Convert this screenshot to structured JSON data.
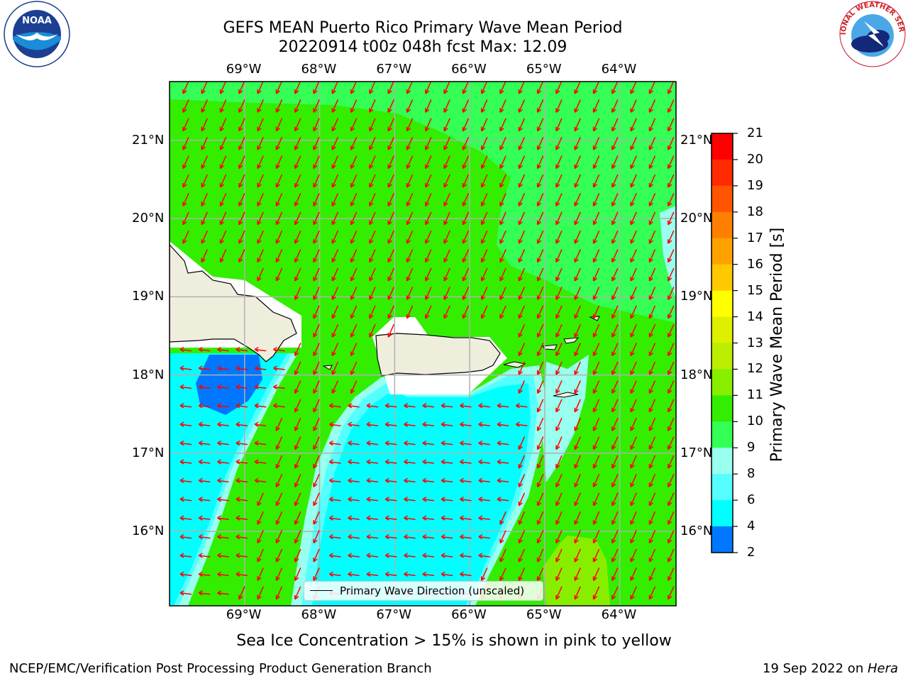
{
  "header": {
    "title_line1": "GEFS MEAN Puerto Rico Primary Wave Mean Period",
    "title_line2": "20220914 t00z 048h fcst   Max: 12.09"
  },
  "logos": {
    "noaa": {
      "text": "NOAA",
      "ring_text": "NATIONAL OCEANIC AND ATMOSPHERIC ADMINISTRATION · U.S. DEPARTMENT OF COMMERCE",
      "icon": "noaa-seagull-logo"
    },
    "nws": {
      "ring_text": "NATIONAL WEATHER SERVICE",
      "icon": "nws-lightning-cloud-logo"
    }
  },
  "map": {
    "lon_ticks": [
      "69°W",
      "68°W",
      "67°W",
      "66°W",
      "65°W",
      "64°W"
    ],
    "lat_ticks": [
      "21°N",
      "20°N",
      "19°N",
      "18°N",
      "17°N",
      "16°N"
    ],
    "lon_range": [
      -70.0,
      -63.25
    ],
    "lat_range": [
      15.05,
      21.75
    ],
    "grid": true,
    "land_color": "#efeedd",
    "arrow_color": "#ff0000",
    "legend_label": "Primary Wave Direction (unscaled)"
  },
  "colorbar": {
    "title": "Primary Wave Mean Period [s]",
    "labels": [
      "21",
      "20",
      "19",
      "18",
      "17",
      "16",
      "15",
      "14",
      "13",
      "12",
      "11",
      "10",
      "9",
      "8",
      "6",
      "4",
      "2"
    ],
    "colors": [
      "#ff0000",
      "#ff2a00",
      "#ff5500",
      "#ff7f00",
      "#ffa200",
      "#ffc800",
      "#ffff00",
      "#ddf000",
      "#bbee00",
      "#88ee00",
      "#33ee00",
      "#33ff55",
      "#99ffee",
      "#55ffff",
      "#00ffff",
      "#0077ff",
      "#0000ff"
    ]
  },
  "footer": {
    "note": "Sea Ice Concentration > 15% is shown in pink to yellow",
    "credit_left": "NCEP/EMC/Verification Post Processing Product Generation Branch",
    "credit_right_prefix": "19 Sep 2022 on ",
    "credit_right_host": "Hera"
  }
}
